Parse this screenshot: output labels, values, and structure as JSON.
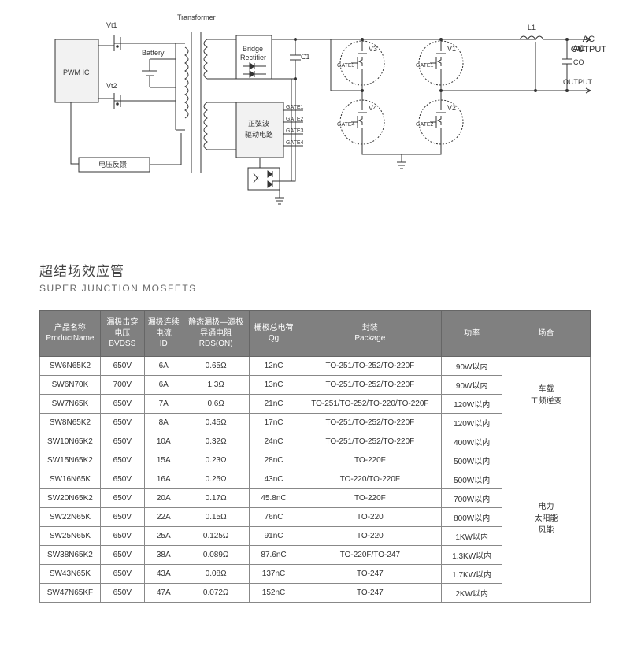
{
  "diagram": {
    "labels": {
      "transformer": "Transformer",
      "pwm_ic": "PWM IC",
      "battery": "Battery",
      "vt1": "Vt1",
      "vt2": "Vt2",
      "feedback": "电压反馈",
      "bridge_rect": "Bridge\nRectifier",
      "c1": "C1",
      "sine_driver": "正弦波\n驱动电路",
      "gate1": "GATE1",
      "gate2": "GATE2",
      "gate3": "GATE3",
      "gate4": "GATE4",
      "v1": "V1",
      "v2": "V2",
      "v3": "V3",
      "v4": "V4",
      "l1": "L1",
      "ac_output": "AC\nOUTPUT",
      "co": "CO"
    },
    "colors": {
      "stroke": "#333333",
      "fill_box": "#f2f2f2",
      "text": "#333333",
      "bg": "#ffffff"
    },
    "stroke_width": 1
  },
  "section": {
    "title_zh": "超结场效应管",
    "title_en": "SUPER JUNCTION MOSFETS"
  },
  "table": {
    "header_bg": "#808080",
    "header_fg": "#ffffff",
    "border_color": "#888888",
    "cell_fg": "#333333",
    "fontsize": 10,
    "columns": [
      "产品名称\nProductName",
      "漏极击穿\n电压\nBVDSS",
      "漏极连续\n电流\nID",
      "静态漏极—源极\n导通电阻\nRDS(ON)",
      "栅极总电荷\nQg",
      "封装\nPackage",
      "功率",
      "场合"
    ],
    "col_widths_pct": [
      11,
      8,
      7,
      12,
      9,
      26,
      11,
      16
    ],
    "row_groups": [
      {
        "application": "车载\n工频逆变",
        "rows": [
          [
            "SW6N65K2",
            "650V",
            "6A",
            "0.65Ω",
            "12nC",
            "TO-251/TO-252/TO-220F",
            "90W以内"
          ],
          [
            "SW6N70K",
            "700V",
            "6A",
            "1.3Ω",
            "13nC",
            "TO-251/TO-252/TO-220F",
            "90W以内"
          ],
          [
            "SW7N65K",
            "650V",
            "7A",
            "0.6Ω",
            "21nC",
            "TO-251/TO-252/TO-220/TO-220F",
            "120W以内"
          ],
          [
            "SW8N65K2",
            "650V",
            "8A",
            "0.45Ω",
            "17nC",
            "TO-251/TO-252/TO-220F",
            "120W以内"
          ]
        ]
      },
      {
        "application": "电力\n太阳能\n风能",
        "rows": [
          [
            "SW10N65K2",
            "650V",
            "10A",
            "0.32Ω",
            "24nC",
            "TO-251/TO-252/TO-220F",
            "400W以内"
          ],
          [
            "SW15N65K2",
            "650V",
            "15A",
            "0.23Ω",
            "28nC",
            "TO-220F",
            "500W以内"
          ],
          [
            "SW16N65K",
            "650V",
            "16A",
            "0.25Ω",
            "43nC",
            "TO-220/TO-220F",
            "500W以内"
          ],
          [
            "SW20N65K2",
            "650V",
            "20A",
            "0.17Ω",
            "45.8nC",
            "TO-220F",
            "700W以内"
          ],
          [
            "SW22N65K",
            "650V",
            "22A",
            "0.15Ω",
            "76nC",
            "TO-220",
            "800W以内"
          ],
          [
            "SW25N65K",
            "650V",
            "25A",
            "0.125Ω",
            "91nC",
            "TO-220",
            "1KW以内"
          ],
          [
            "SW38N65K2",
            "650V",
            "38A",
            "0.089Ω",
            "87.6nC",
            "TO-220F/TO-247",
            "1.3KW以内"
          ],
          [
            "SW43N65K",
            "650V",
            "43A",
            "0.08Ω",
            "137nC",
            "TO-247",
            "1.7KW以内"
          ],
          [
            "SW47N65KF",
            "650V",
            "47A",
            "0.072Ω",
            "152nC",
            "TO-247",
            "2KW以内"
          ]
        ]
      }
    ]
  }
}
